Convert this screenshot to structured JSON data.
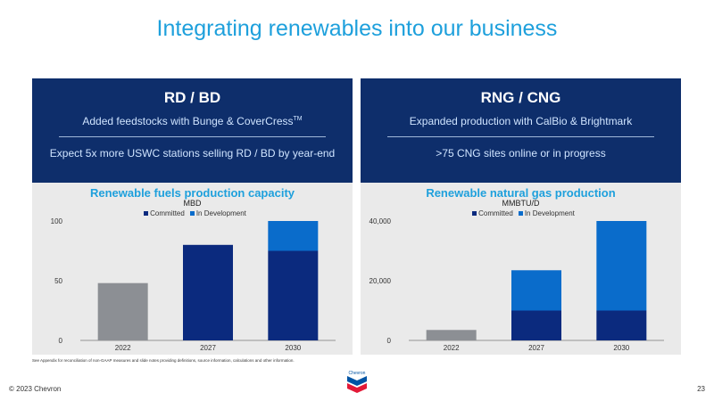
{
  "slide": {
    "title": "Integrating renewables into our business",
    "footnote": "See Appendix for reconciliation of non-GAAP measures and slide notes providing definitions, source information, calculations and other information.",
    "copyright": "© 2023 Chevron",
    "page_number": "23",
    "logo_text": "Chevron"
  },
  "panels": [
    {
      "heading": "RD / BD",
      "line1": "Added feedstocks with Bunge & CoverCress",
      "line1_sup": "TM",
      "line2": "Expect 5x more USWC stations selling RD / BD by year-end"
    },
    {
      "heading": "RNG / CNG",
      "line1": "Expanded production with CalBio & Brightmark",
      "line1_sup": "",
      "line2": ">75 CNG sites online or in progress"
    }
  ],
  "colors": {
    "committed": "#0b2a7e",
    "in_development": "#0a6ccb",
    "existing": "#8c8f94",
    "accent": "#1ea0dc",
    "header_bg": "#0e2e6b"
  },
  "chart_data": [
    {
      "type": "bar",
      "title": "Renewable fuels production capacity",
      "unit": "MBD",
      "categories": [
        "2022",
        "2027",
        "2030"
      ],
      "yticks": [
        "0",
        "50",
        "100"
      ],
      "ylim": [
        0,
        100
      ],
      "legend": [
        "Committed",
        "In Development"
      ],
      "series": [
        {
          "name": "",
          "values": [
            48,
            0,
            0
          ]
        },
        {
          "name": "Committed",
          "values": [
            0,
            80,
            75
          ]
        },
        {
          "name": "In Development",
          "values": [
            0,
            0,
            25
          ]
        }
      ]
    },
    {
      "type": "bar",
      "title": "Renewable natural gas production",
      "unit": "MMBTU/D",
      "categories": [
        "2022",
        "2027",
        "2030"
      ],
      "yticks": [
        "0",
        "20,000",
        "40,000"
      ],
      "ylim": [
        0,
        40000
      ],
      "legend": [
        "Committed",
        "In Development"
      ],
      "series": [
        {
          "name": "",
          "values": [
            3500,
            0,
            0
          ]
        },
        {
          "name": "Committed",
          "values": [
            0,
            10000,
            10000
          ]
        },
        {
          "name": "In Development",
          "values": [
            0,
            13500,
            30000
          ]
        }
      ]
    }
  ]
}
